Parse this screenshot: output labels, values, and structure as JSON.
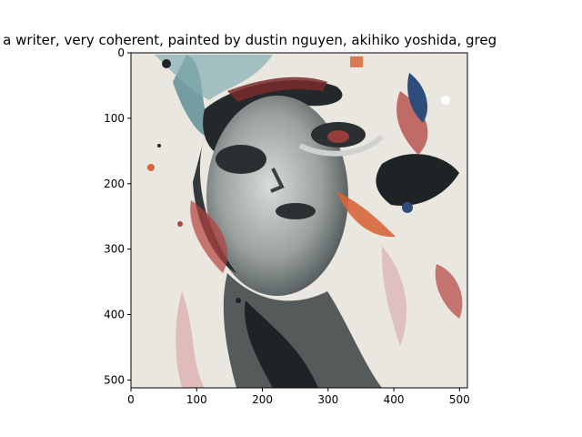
{
  "chart_data": {
    "type": "image",
    "title": "o of a writer,  very coherent, painted by dustin nguyen, akihiko yoshida, greg",
    "xlabel": "",
    "ylabel": "",
    "xlim": [
      0,
      512
    ],
    "ylim": [
      512,
      0
    ],
    "x_ticks": [
      0,
      100,
      200,
      300,
      400,
      500
    ],
    "y_ticks": [
      0,
      100,
      200,
      300,
      400,
      500
    ],
    "image_subject": "abstract painted portrait of a face with ink splashes"
  },
  "colors": {
    "paper": "#e9e7df",
    "ink_dark": "#1e2326",
    "teal": "#5f8f98",
    "red": "#b3413f",
    "orange": "#d8653a",
    "blue": "#2e4d7a",
    "pink": "#d9a0a2"
  }
}
